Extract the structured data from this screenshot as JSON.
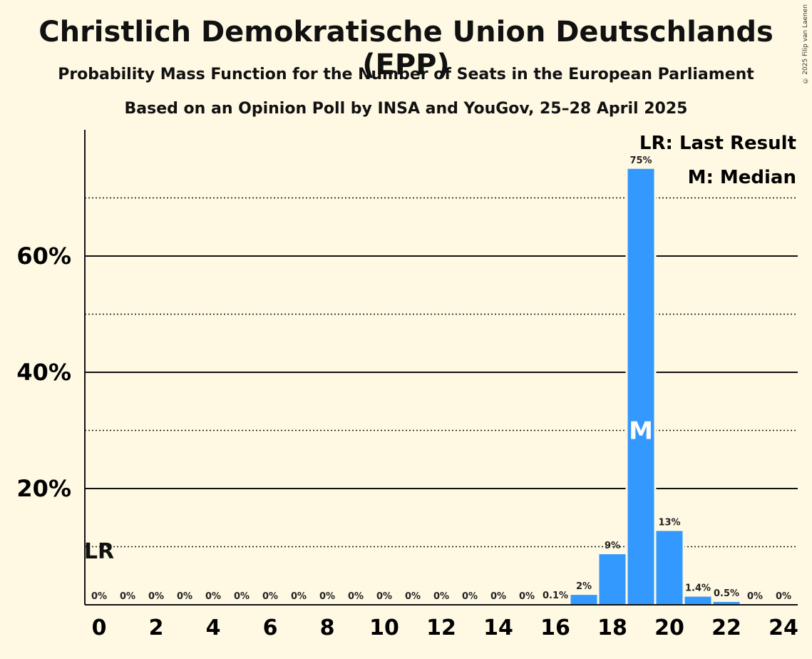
{
  "title": "Christlich Demokratische Union Deutschlands (EPP)",
  "subtitle1": "Probability Mass Function for the Number of Seats in the European Parliament",
  "subtitle2": "Based on an Opinion Poll by INSA and YouGov, 25–28 April 2025",
  "copyright": "© 2025 Filip van Laenen",
  "legend": {
    "last_result": "LR: Last Result",
    "median": "M: Median"
  },
  "colors": {
    "background": "#fff8e3",
    "bar": "#3399ff"
  },
  "chart_data": {
    "type": "bar",
    "x": [
      0,
      1,
      2,
      3,
      4,
      5,
      6,
      7,
      8,
      9,
      10,
      11,
      12,
      13,
      14,
      15,
      16,
      17,
      18,
      19,
      20,
      21,
      22,
      23,
      24
    ],
    "values": [
      0,
      0,
      0,
      0,
      0,
      0,
      0,
      0,
      0,
      0,
      0,
      0,
      0,
      0,
      0,
      0,
      0.1,
      1.7,
      8.7,
      75,
      12.7,
      1.4,
      0.5,
      0,
      0
    ],
    "labels": [
      "0%",
      "0%",
      "0%",
      "0%",
      "0%",
      "0%",
      "0%",
      "0%",
      "0%",
      "0%",
      "0%",
      "0%",
      "0%",
      "0%",
      "0%",
      "0%",
      "0.1%",
      "2%",
      "9%",
      "75%",
      "13%",
      "1.4%",
      "0.5%",
      "0%",
      "0%"
    ],
    "x_tick_labels": [
      "0",
      "2",
      "4",
      "6",
      "8",
      "10",
      "12",
      "14",
      "16",
      "18",
      "20",
      "22",
      "24"
    ],
    "x_tick_values": [
      0,
      2,
      4,
      6,
      8,
      10,
      12,
      14,
      16,
      18,
      20,
      22,
      24
    ],
    "y_tick_labels": [
      "20%",
      "40%",
      "60%"
    ],
    "y_tick_values": [
      20,
      40,
      60
    ],
    "ylim": [
      0,
      82
    ],
    "solid_gridlines": [
      20,
      40,
      60
    ],
    "dotted_gridlines": [
      10,
      30,
      50,
      70
    ],
    "median_seat": 19,
    "median_marker": "M",
    "last_result_seat": 0,
    "last_result_marker": "LR",
    "legend_position": "top-right"
  }
}
